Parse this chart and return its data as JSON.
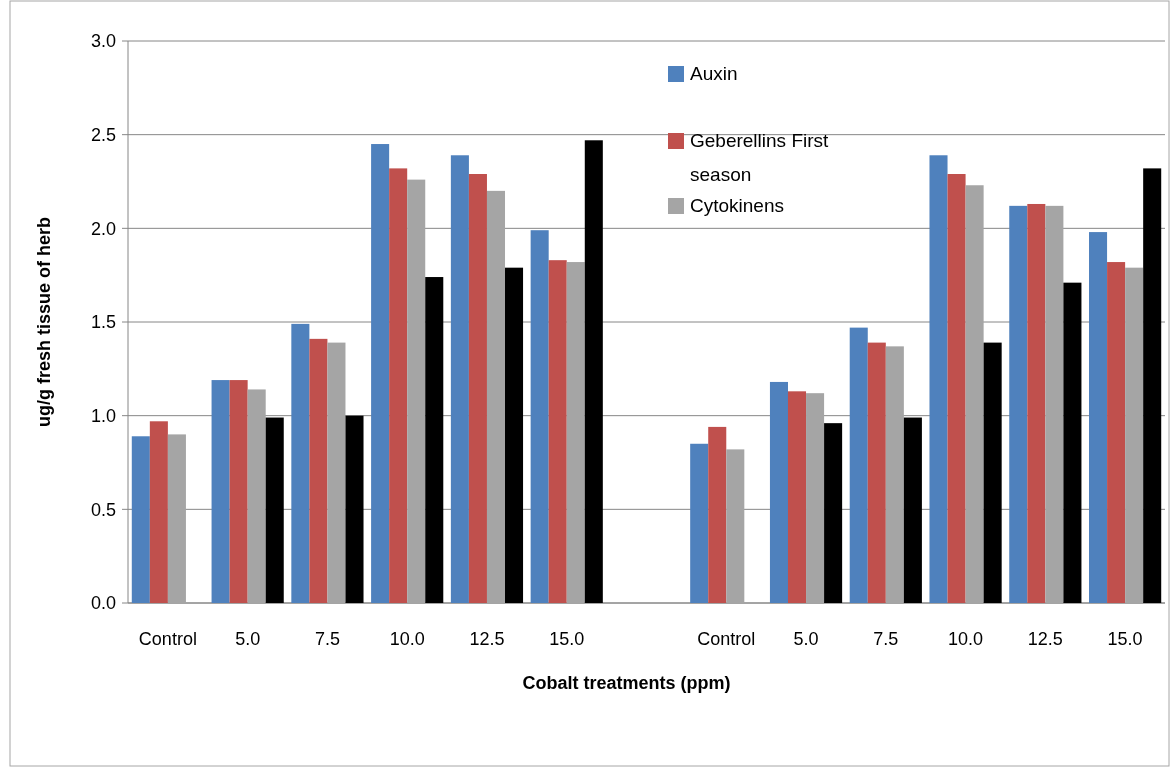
{
  "chart_data": {
    "type": "bar",
    "xlabel": "Cobalt treatments (ppm)",
    "ylabel": "ug/g fresh tissue of herb",
    "categories": [
      "Control",
      "5.0",
      "7.5",
      "10.0",
      "12.5",
      "15.0",
      null,
      "Control",
      "5.0",
      "7.5",
      "10.0",
      "12.5",
      "15.0"
    ],
    "series": [
      {
        "name": "Auxin",
        "color": "#4f81bd",
        "values": [
          0.89,
          1.19,
          1.49,
          2.45,
          2.39,
          1.99,
          null,
          0.85,
          1.18,
          1.47,
          2.39,
          2.12,
          1.98
        ]
      },
      {
        "name": "Geberellins First season",
        "color": "#c0504d",
        "values": [
          0.97,
          1.19,
          1.41,
          2.32,
          2.29,
          1.83,
          null,
          0.94,
          1.13,
          1.39,
          2.29,
          2.13,
          1.82
        ]
      },
      {
        "name": "Cytokinens",
        "color": "#a5a5a5",
        "values": [
          0.9,
          1.14,
          1.39,
          2.26,
          2.2,
          1.82,
          null,
          0.82,
          1.12,
          1.37,
          2.23,
          2.12,
          1.79
        ]
      },
      {
        "color": "#000000",
        "values": [
          null,
          0.99,
          1.0,
          1.74,
          1.79,
          2.47,
          null,
          null,
          0.96,
          0.99,
          1.39,
          1.71,
          2.32
        ]
      }
    ],
    "ylim": [
      0,
      3
    ],
    "yticks": [
      {
        "value": 0,
        "label": "0.0"
      },
      {
        "value": 0.5,
        "label": "0.5"
      },
      {
        "value": 1,
        "label": "1.0"
      },
      {
        "value": 1.5,
        "label": "1.5"
      },
      {
        "value": 2,
        "label": "2.0"
      },
      {
        "value": 2.5,
        "label": "2.5"
      },
      {
        "value": 3,
        "label": "3.0"
      }
    ],
    "grid": "y",
    "legend": "top right"
  }
}
